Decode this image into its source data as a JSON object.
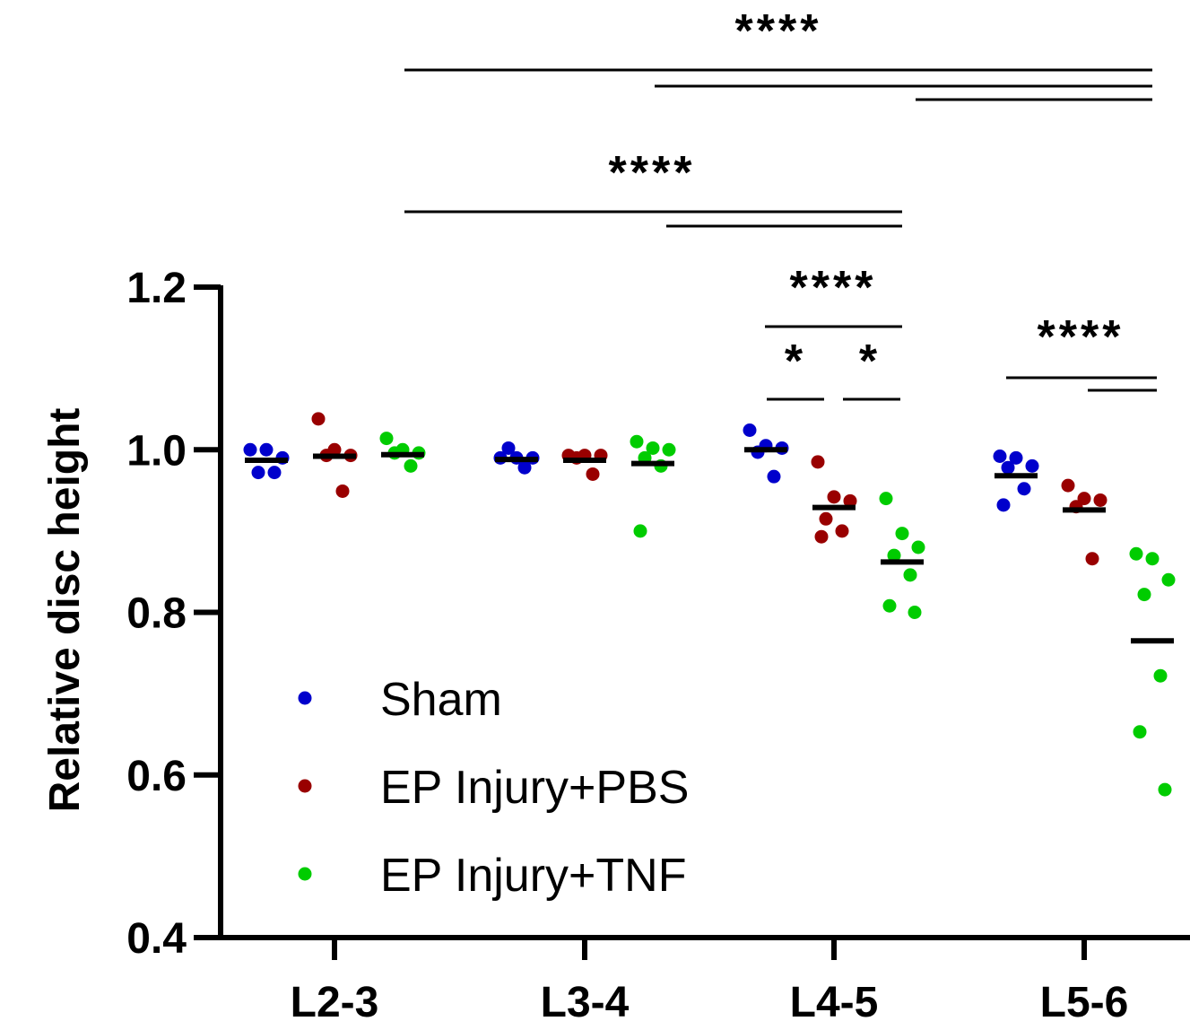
{
  "chart_data": {
    "type": "scatter",
    "ylabel": "Relative disc height",
    "xlabel": "",
    "ylim": [
      0.4,
      1.2
    ],
    "yticks": [
      0.4,
      0.6,
      0.8,
      1.0,
      1.2
    ],
    "ytick_labels": [
      "0.4",
      "0.6",
      "0.8",
      "1.0",
      "1.2"
    ],
    "categories": [
      "L2-3",
      "L3-4",
      "L4-5",
      "L5-6"
    ],
    "legend_position": "bottom-left inside",
    "series": [
      {
        "name": "Sham",
        "color": "#0000CC",
        "values": [
          [
            1.0,
            1.0,
            0.99,
            0.972,
            0.972
          ],
          [
            0.99,
            0.99,
            0.99,
            1.002,
            0.978
          ],
          [
            1.024,
            1.005,
            1.002,
            0.997,
            0.967
          ],
          [
            0.992,
            0.99,
            0.98,
            0.978,
            0.952,
            0.932
          ]
        ],
        "means": [
          0.987,
          0.988,
          1.0,
          0.968
        ]
      },
      {
        "name": "EP Injury+PBS",
        "color": "#990000",
        "values": [
          [
            1.038,
            1.0,
            0.993,
            0.993,
            0.949
          ],
          [
            0.993,
            0.993,
            0.993,
            0.99,
            0.97
          ],
          [
            0.985,
            0.942,
            0.937,
            0.915,
            0.9,
            0.893
          ],
          [
            0.956,
            0.94,
            0.938,
            0.93,
            0.866
          ]
        ],
        "means": [
          0.992,
          0.987,
          0.929,
          0.926
        ]
      },
      {
        "name": "EP Injury+TNF",
        "color": "#00CC00",
        "values": [
          [
            1.014,
            1.0,
            0.996,
            0.996,
            0.98
          ],
          [
            1.01,
            1.002,
            1.0,
            0.99,
            0.98,
            0.9
          ],
          [
            0.94,
            0.897,
            0.88,
            0.87,
            0.846,
            0.808,
            0.8
          ],
          [
            0.872,
            0.866,
            0.84,
            0.822,
            0.722,
            0.653,
            0.582
          ]
        ],
        "means": [
          0.994,
          0.983,
          0.862,
          0.765
        ]
      }
    ],
    "significance": [
      {
        "label": "****"
      },
      {
        "label": "****"
      },
      {
        "label": "****"
      },
      {
        "label": "*"
      },
      {
        "label": "*"
      },
      {
        "label": "****"
      }
    ]
  }
}
